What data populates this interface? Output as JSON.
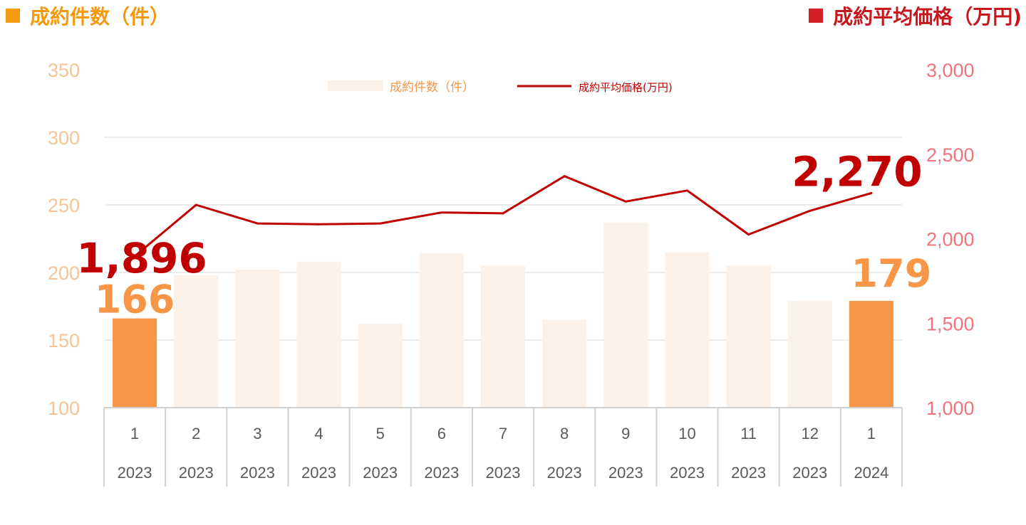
{
  "header": {
    "left_title": "成約件数（件）",
    "right_title": "成約平均価格（万円)"
  },
  "chart_data": {
    "type": "bar",
    "categories": [
      "1",
      "2",
      "3",
      "4",
      "5",
      "6",
      "7",
      "8",
      "9",
      "10",
      "11",
      "12",
      "1"
    ],
    "years": [
      "2023",
      "2023",
      "2023",
      "2023",
      "2023",
      "2023",
      "2023",
      "2023",
      "2023",
      "2023",
      "2023",
      "2023",
      "2024"
    ],
    "series": [
      {
        "name": "成約件数（件）",
        "kind": "bar",
        "axis": "left",
        "values": [
          166,
          198,
          202,
          208,
          162,
          214,
          205,
          165,
          237,
          215,
          205,
          179,
          179
        ],
        "color": "#fcf1e8",
        "highlight_color": "#f79646",
        "highlight_indices": [
          0,
          12
        ]
      },
      {
        "name": "成約平均価格(万円)",
        "kind": "line",
        "axis": "right",
        "values": [
          1896,
          2200,
          2090,
          2085,
          2090,
          2155,
          2150,
          2370,
          2220,
          2285,
          2025,
          2165,
          2270
        ],
        "color": "#c00000"
      }
    ],
    "y_left": {
      "min": 100,
      "max": 350,
      "step": 50,
      "ticks": [
        "100",
        "150",
        "200",
        "250",
        "300",
        "350"
      ]
    },
    "y_right": {
      "min": 1000,
      "max": 3000,
      "step": 500,
      "ticks": [
        "1,000",
        "1,500",
        "2,000",
        "2,500",
        "3,000"
      ]
    },
    "data_labels": [
      {
        "series": 0,
        "index": 0,
        "text": "166"
      },
      {
        "series": 0,
        "index": 12,
        "text": "179"
      },
      {
        "series": 1,
        "index": 0,
        "text": "1,896"
      },
      {
        "series": 1,
        "index": 12,
        "text": "2,270"
      }
    ],
    "legend": {
      "position": "top",
      "bar_label": "成約件数（件）",
      "line_label": "成約平均価格(万円)"
    },
    "grid": true,
    "colors": {
      "left_axis": "#f6c494",
      "right_axis": "#f2737b",
      "bar_label": "#f79646",
      "line_label": "#c00000",
      "legend_bar_text": "#f79646",
      "legend_line_text": "#c00000"
    }
  }
}
